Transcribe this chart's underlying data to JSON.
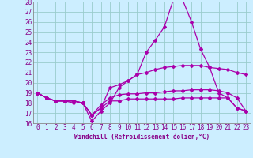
{
  "xlabel": "Windchill (Refroidissement éolien,°C)",
  "x_values": [
    0,
    1,
    2,
    3,
    4,
    5,
    6,
    7,
    8,
    9,
    10,
    11,
    12,
    13,
    14,
    15,
    16,
    17,
    18,
    19,
    20,
    21,
    22,
    23
  ],
  "lines": [
    [
      19,
      18.5,
      18.2,
      18.2,
      18.2,
      18.0,
      16.2,
      17.2,
      18.0,
      19.5,
      20.2,
      20.8,
      23.0,
      24.2,
      25.5,
      28.2,
      28.2,
      26.0,
      23.3,
      21.5,
      19.0,
      18.5,
      17.5,
      17.2
    ],
    [
      19,
      18.5,
      18.2,
      18.2,
      18.2,
      18.0,
      16.8,
      17.5,
      19.5,
      19.8,
      20.2,
      20.8,
      21.0,
      21.3,
      21.5,
      21.6,
      21.7,
      21.7,
      21.7,
      21.5,
      21.4,
      21.3,
      21.0,
      20.8
    ],
    [
      19,
      18.5,
      18.2,
      18.2,
      18.0,
      18.0,
      16.8,
      17.8,
      18.5,
      18.8,
      18.9,
      18.9,
      19.0,
      19.0,
      19.1,
      19.2,
      19.2,
      19.3,
      19.3,
      19.3,
      19.2,
      19.0,
      18.5,
      17.2
    ],
    [
      19,
      18.5,
      18.2,
      18.2,
      18.2,
      18.0,
      16.8,
      17.5,
      18.2,
      18.2,
      18.4,
      18.4,
      18.4,
      18.4,
      18.4,
      18.4,
      18.5,
      18.5,
      18.5,
      18.5,
      18.5,
      18.5,
      17.5,
      17.2
    ]
  ],
  "line_color": "#aa00aa",
  "bg_color": "#cceeff",
  "grid_color": "#99cccc",
  "tick_color": "#880088",
  "ylim": [
    16,
    28
  ],
  "xlim": [
    -0.5,
    23.5
  ],
  "yticks": [
    16,
    17,
    18,
    19,
    20,
    21,
    22,
    23,
    24,
    25,
    26,
    27,
    28
  ],
  "xticks": [
    0,
    1,
    2,
    3,
    4,
    5,
    6,
    7,
    8,
    9,
    10,
    11,
    12,
    13,
    14,
    15,
    16,
    17,
    18,
    19,
    20,
    21,
    22,
    23
  ],
  "marker": "D",
  "markersize": 2.0,
  "linewidth": 0.9,
  "tick_fontsize": 5.5,
  "xlabel_fontsize": 5.5
}
